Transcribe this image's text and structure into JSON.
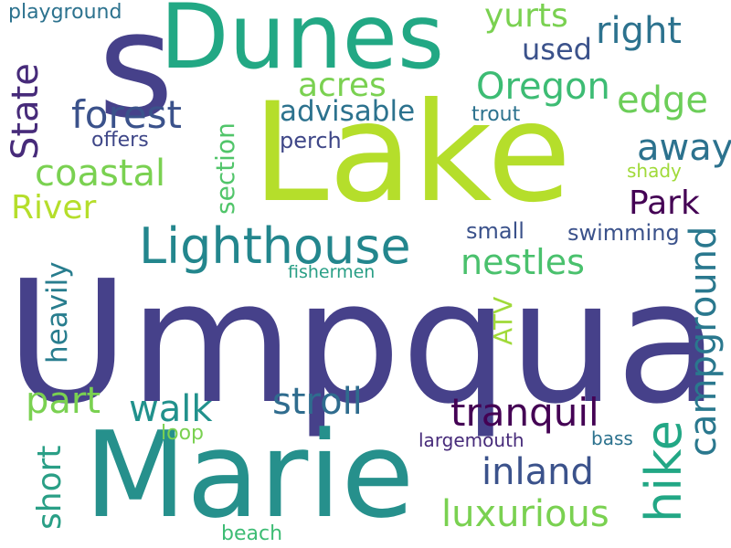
{
  "words": {
    "umpqua": {
      "text": "Umpqua",
      "color": "#46418a"
    },
    "lake": {
      "text": "Lake",
      "color": "#b5de2b"
    },
    "marie": {
      "text": "Marie",
      "color": "#26908c"
    },
    "dunes": {
      "text": "Dunes",
      "color": "#22a884"
    },
    "s": {
      "text": "s",
      "color": "#46418a"
    },
    "lighthouse": {
      "text": "Lighthouse",
      "color": "#23868d"
    },
    "hike": {
      "text": "hike",
      "color": "#22a785"
    },
    "campground": {
      "text": "campground",
      "color": "#2a788e"
    },
    "tranquil": {
      "text": "tranquil",
      "color": "#440154"
    },
    "stroll": {
      "text": "stroll",
      "color": "#2f6c8e"
    },
    "inland": {
      "text": "inland",
      "color": "#3b528b"
    },
    "luxurious": {
      "text": "luxurious",
      "color": "#7ad151"
    },
    "walk": {
      "text": "walk",
      "color": "#21918c"
    },
    "part": {
      "text": "part",
      "color": "#7ad151"
    },
    "short": {
      "text": "short",
      "color": "#2a9f86"
    },
    "heavily": {
      "text": "heavily",
      "color": "#287d8e"
    },
    "river": {
      "text": "River",
      "color": "#b5de2b"
    },
    "coastal": {
      "text": "coastal",
      "color": "#7ad151"
    },
    "state": {
      "text": "State",
      "color": "#472b7a"
    },
    "forest": {
      "text": "forest",
      "color": "#3b528b"
    },
    "section": {
      "text": "section",
      "color": "#51c56a"
    },
    "advisable": {
      "text": "advisable",
      "color": "#2c728e"
    },
    "acres": {
      "text": "acres",
      "color": "#7ad151"
    },
    "oregon": {
      "text": "Oregon",
      "color": "#3dbc74"
    },
    "yurts": {
      "text": "yurts",
      "color": "#7ad151"
    },
    "used": {
      "text": "used",
      "color": "#3b528b"
    },
    "right": {
      "text": "right",
      "color": "#2c728e"
    },
    "edge": {
      "text": "edge",
      "color": "#6cce59"
    },
    "away": {
      "text": "away",
      "color": "#2c728e"
    },
    "park": {
      "text": "Park",
      "color": "#440154"
    },
    "nestles": {
      "text": "nestles",
      "color": "#4ac16d"
    },
    "atv": {
      "text": "ATV",
      "color": "#a0da39"
    },
    "swimming": {
      "text": "swimming",
      "color": "#3b528b"
    },
    "small": {
      "text": "small",
      "color": "#3b528b"
    },
    "fishermen": {
      "text": "fishermen",
      "color": "#2a9f86"
    },
    "perch": {
      "text": "perch",
      "color": "#3f4788"
    },
    "trout": {
      "text": "trout",
      "color": "#2c728e"
    },
    "shady": {
      "text": "shady",
      "color": "#a0da39"
    },
    "offers": {
      "text": "offers",
      "color": "#3f4788"
    },
    "playground": {
      "text": "playground",
      "color": "#2c728e"
    },
    "loop": {
      "text": "loop",
      "color": "#7ad151"
    },
    "largemouth": {
      "text": "largemouth",
      "color": "#472b7a"
    },
    "bass": {
      "text": "bass",
      "color": "#2c728e"
    },
    "beach": {
      "text": "beach",
      "color": "#3dbc74"
    }
  }
}
